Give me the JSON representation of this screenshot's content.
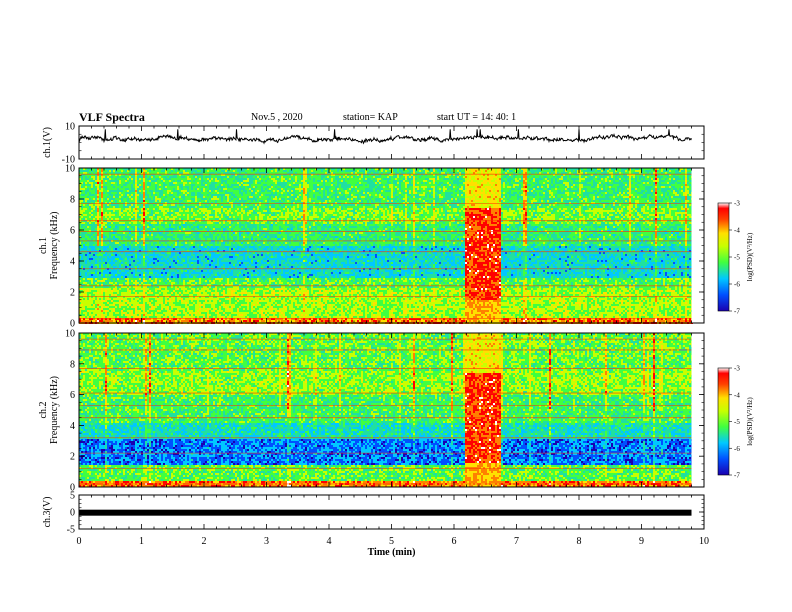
{
  "header": {
    "title": "VLF Spectra",
    "date": "Nov.5 , 2020",
    "station": "station= KAP",
    "start": "start UT = 14: 40: 1"
  },
  "colors": {
    "trace": "#000000",
    "colormap": [
      "#1a00b0",
      "#0050ff",
      "#00c8ff",
      "#20e0a0",
      "#40ff40",
      "#c8ff00",
      "#ffe000",
      "#ff8000",
      "#ff0000",
      "#ffffff"
    ]
  },
  "chart_data": [
    {
      "type": "line",
      "panel": "ch1-waveform",
      "ylabel": "ch.1(V)",
      "ylim": [
        -10,
        10
      ],
      "yticks": [
        "10",
        "-10"
      ],
      "xlim": [
        0,
        10
      ],
      "note_values": "noisy trace around ~2 V, range roughly 0 to 5 V over 0–9.8 min"
    },
    {
      "type": "heatmap",
      "panel": "ch1-spectrogram",
      "ylabel": "ch.1 Frequency (kHz)",
      "ylim": [
        0,
        10
      ],
      "yticks": [
        "0",
        "2",
        "4",
        "6",
        "8",
        "10"
      ],
      "xlim": [
        0,
        10
      ],
      "data_x_end": 9.8,
      "burst_interval": [
        6.15,
        6.75
      ],
      "colorbar": {
        "label": "log(PSD)(V²/Hz)",
        "range": [
          -7,
          -3
        ],
        "ticks": [
          "-3",
          "-4",
          "-5",
          "-6",
          "-7"
        ]
      }
    },
    {
      "type": "heatmap",
      "panel": "ch2-spectrogram",
      "ylabel": "ch.2 Frequency (kHz)",
      "ylim": [
        0,
        10
      ],
      "yticks": [
        "0",
        "2",
        "4",
        "6",
        "8",
        "10"
      ],
      "xlim": [
        0,
        10
      ],
      "data_x_end": 9.8,
      "burst_interval": [
        6.15,
        6.75
      ],
      "colorbar": {
        "label": "log(PSD)(V²/Hz)",
        "range": [
          -7,
          -3
        ],
        "ticks": [
          "-3",
          "-4",
          "-5",
          "-6",
          "-7"
        ]
      }
    },
    {
      "type": "line",
      "panel": "ch3-waveform",
      "ylabel": "ch.3(V)",
      "ylim": [
        -5,
        5
      ],
      "yticks": [
        "5",
        "0",
        "-5"
      ],
      "xlim": [
        0,
        10
      ],
      "value": -0.2
    },
    {
      "type": "axis",
      "xlabel": "Time (min)",
      "xticks": [
        "0",
        "1",
        "2",
        "3",
        "4",
        "5",
        "6",
        "7",
        "8",
        "9",
        "10"
      ]
    }
  ]
}
